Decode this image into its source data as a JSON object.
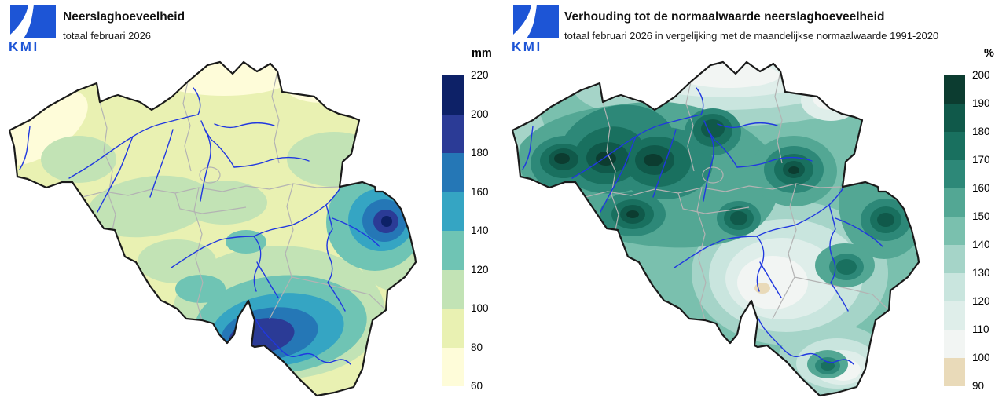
{
  "left_panel": {
    "logo": {
      "text": "KMI"
    },
    "title": "Neerslaghoeveelheid",
    "subtitle": "totaal februari 2026",
    "legend": {
      "unit": "mm",
      "tick_labels": [
        "220",
        "200",
        "180",
        "160",
        "140",
        "120",
        "100",
        "80",
        "60"
      ],
      "colors_top_to_bottom": [
        "#0d2167",
        "#2b3b96",
        "#2577b6",
        "#35a5c3",
        "#6fc4b4",
        "#c2e3b5",
        "#e9f1b2",
        "#fefcd9"
      ]
    }
  },
  "right_panel": {
    "logo": {
      "text": "KMI"
    },
    "title": "Verhouding tot de normaalwaarde neerslaghoeveelheid",
    "subtitle": "totaal februari 2026 in vergelijking met de maandelijkse normaalwaarde 1991-2020",
    "legend": {
      "unit": "%",
      "tick_labels": [
        "200",
        "190",
        "180",
        "170",
        "160",
        "150",
        "140",
        "130",
        "120",
        "110",
        "100",
        "90"
      ],
      "colors_top_to_bottom": [
        "#0c3c30",
        "#10594a",
        "#19705f",
        "#2d8878",
        "#53a794",
        "#7ac0ae",
        "#a5d4c8",
        "#c9e5de",
        "#dfeeea",
        "#f2f5f3",
        "#e9dab9"
      ]
    }
  },
  "map": {
    "region": "Belgium",
    "colors": {
      "country_border": "#1a1a1a",
      "province_border": "#b3b3b3",
      "river": "#2038e0",
      "logo_blue": "#1d55d6"
    }
  }
}
